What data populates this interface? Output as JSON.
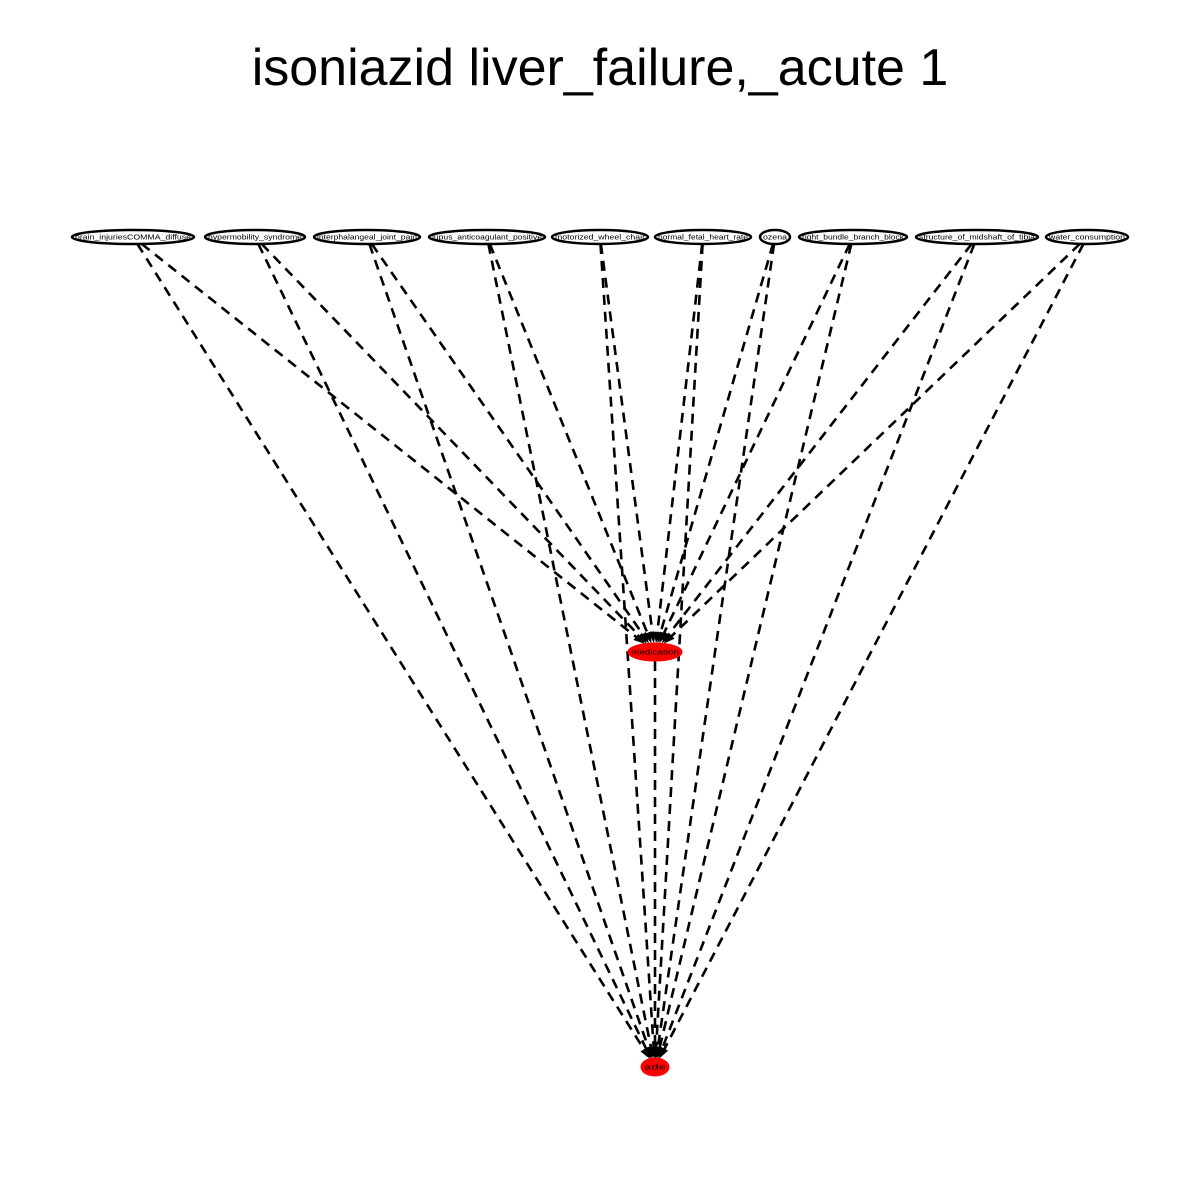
{
  "title": "isoniazid liver_failure,_acute 1",
  "colors": {
    "highlight": "#ff0000",
    "stroke": "#000000",
    "background": "#ffffff"
  },
  "nodes": [
    {
      "id": "n0",
      "label": "brain_injuriesCOMMA_diffuse",
      "group": "feature"
    },
    {
      "id": "n1",
      "label": "hypermobility_syndrome",
      "group": "feature"
    },
    {
      "id": "n2",
      "label": "interphalangeal_joint_pain",
      "group": "feature"
    },
    {
      "id": "n3",
      "label": "lupus_anticoagulant_positive",
      "group": "feature"
    },
    {
      "id": "n4",
      "label": "motorized_wheel_chair",
      "group": "feature"
    },
    {
      "id": "n5",
      "label": "normal_fetal_heart_rate",
      "group": "feature"
    },
    {
      "id": "n6",
      "label": "ozena",
      "group": "feature"
    },
    {
      "id": "n7",
      "label": "right_bundle_branch_block",
      "group": "feature"
    },
    {
      "id": "n8",
      "label": "structure_of_midshaft_of_tibia",
      "group": "feature"
    },
    {
      "id": "n9",
      "label": "water_consumption",
      "group": "feature"
    },
    {
      "id": "med",
      "label": "medication",
      "group": "highlight"
    },
    {
      "id": "ade",
      "label": "ade",
      "group": "highlight"
    }
  ],
  "edges": [
    {
      "from": "n0",
      "to": "med"
    },
    {
      "from": "n0",
      "to": "ade"
    },
    {
      "from": "n1",
      "to": "med"
    },
    {
      "from": "n1",
      "to": "ade"
    },
    {
      "from": "n2",
      "to": "med"
    },
    {
      "from": "n2",
      "to": "ade"
    },
    {
      "from": "n3",
      "to": "med"
    },
    {
      "from": "n3",
      "to": "ade"
    },
    {
      "from": "n4",
      "to": "med"
    },
    {
      "from": "n4",
      "to": "ade"
    },
    {
      "from": "n5",
      "to": "med"
    },
    {
      "from": "n5",
      "to": "ade"
    },
    {
      "from": "n6",
      "to": "med"
    },
    {
      "from": "n6",
      "to": "ade"
    },
    {
      "from": "n7",
      "to": "med"
    },
    {
      "from": "n7",
      "to": "ade"
    },
    {
      "from": "n8",
      "to": "med"
    },
    {
      "from": "n8",
      "to": "ade"
    },
    {
      "from": "n9",
      "to": "med"
    },
    {
      "from": "n9",
      "to": "ade"
    },
    {
      "from": "med",
      "to": "ade"
    }
  ]
}
